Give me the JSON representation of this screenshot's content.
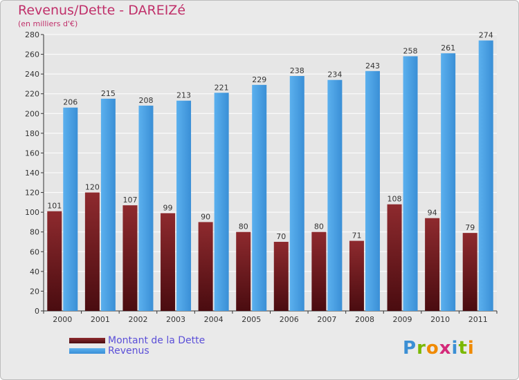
{
  "header": {
    "title": "Revenus/Dette - DAREIZé",
    "subtitle": "(en milliers d'€)"
  },
  "colors": {
    "debt": "#7a1e22",
    "revenue": "#4da3e6",
    "grid": "#ffffff",
    "text": "#333333",
    "title": "#c0306a",
    "legend_text": "#5b4fd8"
  },
  "chart_data": {
    "type": "bar",
    "title": "Revenus/Dette - DAREIZé",
    "subtitle": "(en milliers d'€)",
    "categories": [
      "2000",
      "2001",
      "2002",
      "2003",
      "2004",
      "2005",
      "2006",
      "2007",
      "2008",
      "2009",
      "2010",
      "2011"
    ],
    "series": [
      {
        "name": "Montant de la Dette",
        "values": [
          101,
          120,
          107,
          99,
          90,
          80,
          70,
          80,
          71,
          108,
          94,
          79
        ]
      },
      {
        "name": "Revenus",
        "values": [
          206,
          215,
          208,
          213,
          221,
          229,
          238,
          234,
          243,
          258,
          261,
          274
        ]
      }
    ],
    "ylim": [
      0,
      280
    ],
    "yticks": [
      0,
      20,
      40,
      60,
      80,
      100,
      120,
      140,
      160,
      180,
      200,
      220,
      240,
      260,
      280
    ],
    "grid": true,
    "legend": "bottom-left"
  },
  "legend": {
    "items": [
      {
        "label": "Montant de la Dette"
      },
      {
        "label": "Revenus"
      }
    ]
  },
  "logo": {
    "letters": [
      "P",
      "r",
      "o",
      "x",
      "i",
      "t",
      "i"
    ],
    "colors": [
      "#3b8fd4",
      "#7ab800",
      "#f08a00",
      "#d42a7a",
      "#3b8fd4",
      "#7ab800",
      "#f08a00"
    ]
  }
}
